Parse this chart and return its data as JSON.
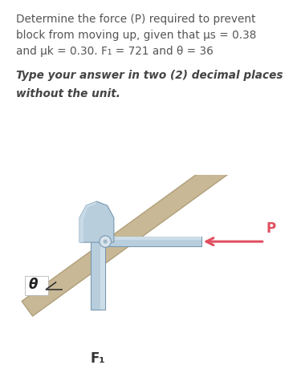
{
  "bg_color": "#ede8d5",
  "outer_bg": "#ffffff",
  "title_line1": "Determine the force (P) required to prevent",
  "title_line2": "block from moving up, given that μs = 0.38",
  "title_line3": "and μk = 0.30. F₁ = 721 and θ = 36",
  "bold_line1": "**Type your answer in two (2) decimal places",
  "bold_line2": "without the unit.",
  "label_P": "P",
  "label_theta": "θ",
  "label_F1": "F₁",
  "arrow_color": "#e05060",
  "block_color_light": "#b8cedd",
  "block_color_mid": "#9ab8cc",
  "block_color_dark": "#7898b0",
  "ramp_color": "#c8b896",
  "ramp_edge": "#b0a07a",
  "text_color": "#444444",
  "text_color_normal": "#555555"
}
